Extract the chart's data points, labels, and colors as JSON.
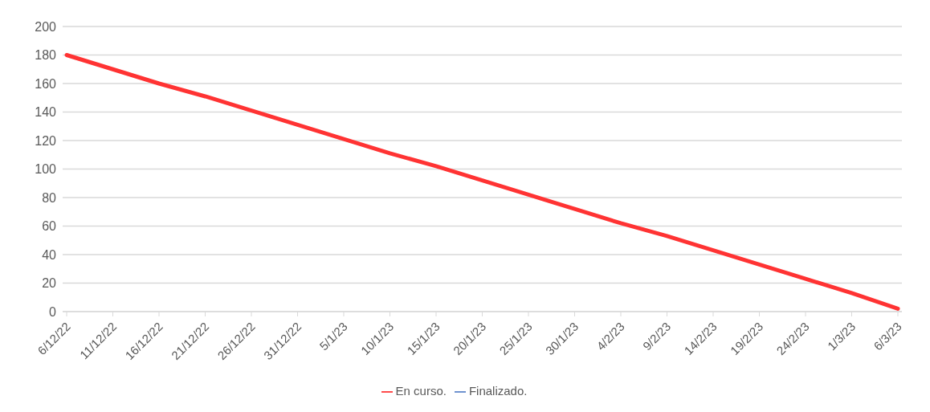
{
  "chart_data": {
    "type": "line",
    "categories": [
      "6/12/22",
      "11/12/22",
      "16/12/22",
      "21/12/22",
      "26/12/22",
      "31/12/22",
      "5/1/23",
      "10/1/23",
      "15/1/23",
      "20/1/23",
      "25/1/23",
      "30/1/23",
      "4/2/23",
      "9/2/23",
      "14/2/23",
      "19/2/23",
      "24/2/23",
      "1/3/23",
      "6/3/23"
    ],
    "series": [
      {
        "name": "En curso.",
        "color": "#ff3333",
        "values": [
          180,
          170,
          160,
          151,
          141,
          131,
          121,
          111,
          102,
          92,
          82,
          72,
          62,
          53,
          43,
          33,
          23,
          13,
          2
        ]
      },
      {
        "name": "Finalizado.",
        "color": "#5b84c9",
        "values": [
          null,
          null,
          null,
          null,
          null,
          null,
          null,
          null,
          null,
          null,
          null,
          null,
          null,
          null,
          null,
          null,
          null,
          null,
          null
        ]
      }
    ],
    "ylim": [
      0,
      200
    ],
    "yticks": [
      0,
      20,
      40,
      60,
      80,
      100,
      120,
      140,
      160,
      180,
      200
    ],
    "grid": "y",
    "legend": "bottom",
    "marker": "none",
    "line_style": "solid"
  }
}
